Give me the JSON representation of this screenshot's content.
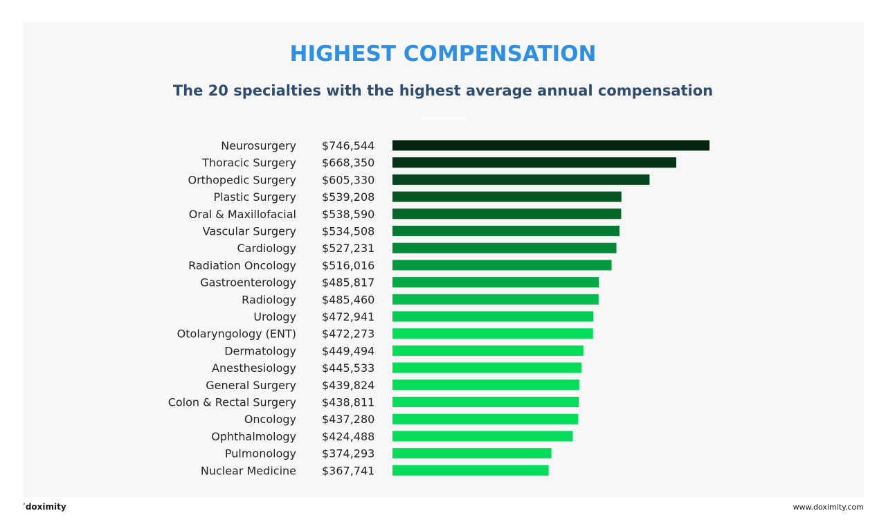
{
  "header": {
    "title": "HIGHEST COMPENSATION",
    "subtitle": "The 20 specialties with the highest average annual compensation"
  },
  "colors": {
    "title": "#2d8fe6",
    "subtitle": "#2f4c6e",
    "label": "#222222",
    "bar_dark": "#06240f",
    "bar_light": "#04dc5a",
    "panel": "#f7f7f7"
  },
  "chart_data": {
    "type": "bar",
    "orientation": "horizontal",
    "categories": [
      "Neurosurgery",
      "Thoracic Surgery",
      "Orthopedic Surgery",
      "Plastic Surgery",
      "Oral & Maxillofacial",
      "Vascular Surgery",
      "Cardiology",
      "Radiation Oncology",
      "Gastroenterology",
      "Radiology",
      "Urology",
      "Otolaryngology (ENT)",
      "Dermatology",
      "Anesthesiology",
      "General Surgery",
      "Colon & Rectal Surgery",
      "Oncology",
      "Ophthalmology",
      "Pulmonology",
      "Nuclear Medicine"
    ],
    "values": [
      746544,
      668350,
      605330,
      539208,
      538590,
      534508,
      527231,
      516016,
      485817,
      485460,
      472941,
      472273,
      449494,
      445533,
      439824,
      438811,
      437280,
      424488,
      374293,
      367741
    ],
    "value_labels": [
      "$746,544",
      "$668,350",
      "$605,330",
      "$539,208",
      "$538,590",
      "$534,508",
      "$527,231",
      "$516,016",
      "$485,817",
      "$485,460",
      "$472,941",
      "$472,273",
      "$449,494",
      "$445,533",
      "$439,824",
      "$438,811",
      "$437,280",
      "$424,488",
      "$374,293",
      "$367,741"
    ],
    "grid": false,
    "legend": "none",
    "xlim": [
      0,
      746544
    ]
  },
  "footer": {
    "logo_text": "doximity",
    "url": "www.doximity.com"
  }
}
